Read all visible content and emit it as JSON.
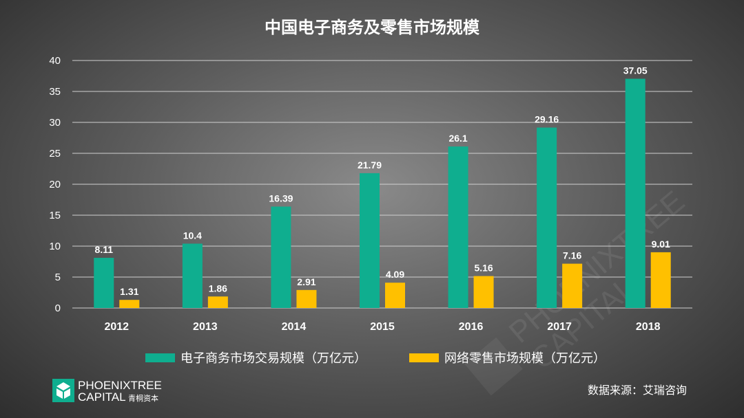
{
  "colors": {
    "primary": "#0fae8f",
    "secondary": "#ffc000",
    "text": "#ffffff",
    "grid": "#d0d0d0"
  },
  "chart_data": {
    "type": "bar",
    "title": "中国电子商务及零售市场规模",
    "categories": [
      "2012",
      "2013",
      "2014",
      "2015",
      "2016",
      "2017",
      "2018"
    ],
    "series": [
      {
        "name": "电子商务市场交易规模（万亿元）",
        "values": [
          8.11,
          10.4,
          16.39,
          21.79,
          26.1,
          29.16,
          37.05
        ],
        "labels": [
          "8.11",
          "10.4",
          "16.39",
          "21.79",
          "26.1",
          "29.16",
          "37.05"
        ]
      },
      {
        "name": "网络零售市场规模（万亿元）",
        "values": [
          1.31,
          1.86,
          2.91,
          4.09,
          5.16,
          7.16,
          9.01
        ],
        "labels": [
          "1.31",
          "1.86",
          "2.91",
          "4.09",
          "5.16",
          "7.16",
          "9.01"
        ]
      }
    ],
    "yticks": [
      0,
      5,
      10,
      15,
      20,
      25,
      30,
      35,
      40
    ],
    "ylim": [
      0,
      40
    ],
    "xlabel": "",
    "ylabel": "",
    "grid": true,
    "legend": "bottom"
  },
  "source": "数据来源：艾瑞咨询",
  "logo": {
    "line1": "PHOENIXTREE",
    "line2": "CAPITAL",
    "cn": "青桐资本"
  }
}
